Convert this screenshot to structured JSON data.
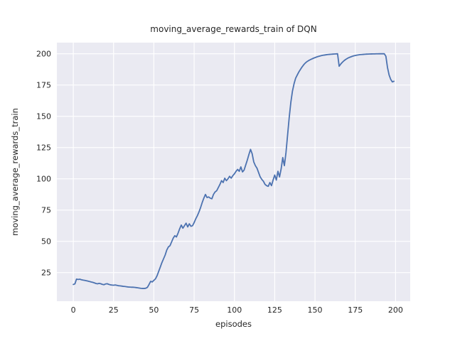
{
  "figure": {
    "title": "moving_average_rewards_train of DQN",
    "xlabel": "episodes",
    "ylabel": "moving_average_rewards_train"
  },
  "colors": {
    "line": "#4C72B0",
    "plot_background": "#EAEAF2",
    "grid": "#FFFFFF",
    "text": "#262626",
    "figure_background": "#FFFFFF"
  },
  "chart_data": {
    "type": "line",
    "title": "moving_average_rewards_train of DQN",
    "xlabel": "episodes",
    "ylabel": "moving_average_rewards_train",
    "x_ticks": [
      0,
      25,
      50,
      75,
      100,
      125,
      150,
      175,
      200
    ],
    "y_ticks": [
      25,
      50,
      75,
      100,
      125,
      150,
      175,
      200
    ],
    "xlim": [
      -10.2,
      209.1
    ],
    "ylim": [
      2.1,
      208.9
    ],
    "grid": true,
    "legend_position": "none",
    "line_color": "#4C72B0",
    "line_width": 1.8,
    "series": [
      {
        "name": "moving_average_rewards_train",
        "x_start": 0,
        "x_step": 1,
        "values": [
          15.5,
          16.0,
          19.8,
          19.5,
          19.7,
          19.3,
          19.0,
          18.8,
          18.5,
          18.2,
          17.9,
          17.5,
          17.2,
          16.8,
          16.3,
          16.0,
          16.4,
          16.1,
          15.6,
          15.3,
          15.9,
          16.1,
          15.6,
          15.2,
          15.0,
          14.9,
          15.1,
          14.8,
          14.5,
          14.4,
          14.2,
          14.0,
          13.9,
          13.7,
          13.5,
          13.4,
          13.3,
          13.3,
          13.2,
          13.0,
          12.8,
          12.6,
          12.4,
          12.3,
          12.3,
          12.5,
          13.2,
          15.5,
          18.0,
          17.5,
          18.8,
          20.0,
          22.5,
          26.0,
          29.5,
          33.0,
          36.0,
          39.0,
          43.0,
          45.5,
          46.5,
          49.5,
          52.5,
          54.5,
          53.5,
          56.5,
          60.0,
          63.0,
          60.5,
          62.5,
          64.5,
          61.5,
          64.0,
          62.0,
          62.5,
          65.0,
          68.0,
          70.5,
          73.5,
          77.0,
          81.0,
          84.5,
          87.5,
          85.0,
          85.5,
          84.5,
          84.0,
          87.5,
          89.5,
          90.5,
          93.0,
          95.5,
          98.5,
          97.0,
          100.5,
          98.5,
          100.0,
          102.0,
          100.5,
          102.5,
          104.0,
          106.0,
          107.5,
          106.0,
          109.5,
          105.5,
          107.0,
          111.0,
          115.0,
          119.5,
          123.5,
          120.0,
          113.5,
          110.5,
          108.5,
          105.0,
          101.5,
          99.5,
          98.0,
          95.5,
          94.5,
          94.0,
          97.0,
          94.5,
          99.0,
          103.0,
          99.0,
          106.0,
          101.5,
          108.0,
          117.0,
          110.5,
          121.0,
          135.0,
          149.0,
          161.0,
          170.0,
          176.0,
          180.5,
          183.0,
          185.5,
          187.5,
          189.5,
          191.2,
          192.6,
          193.7,
          194.5,
          195.2,
          195.8,
          196.4,
          196.9,
          197.4,
          197.8,
          198.2,
          198.5,
          198.8,
          199.0,
          199.2,
          199.4,
          199.5,
          199.6,
          199.7,
          199.8,
          199.9,
          200.0,
          190.0,
          191.8,
          193.2,
          194.4,
          195.4,
          196.2,
          196.9,
          197.4,
          197.9,
          198.3,
          198.6,
          198.9,
          199.1,
          199.3,
          199.4,
          199.5,
          199.6,
          199.7,
          199.75,
          199.8,
          199.85,
          199.9,
          199.9,
          199.95,
          199.95,
          200.0,
          200.0,
          200.0,
          200.0,
          198.0,
          189.0,
          183.0,
          179.5,
          177.5,
          178.0
        ]
      }
    ]
  }
}
